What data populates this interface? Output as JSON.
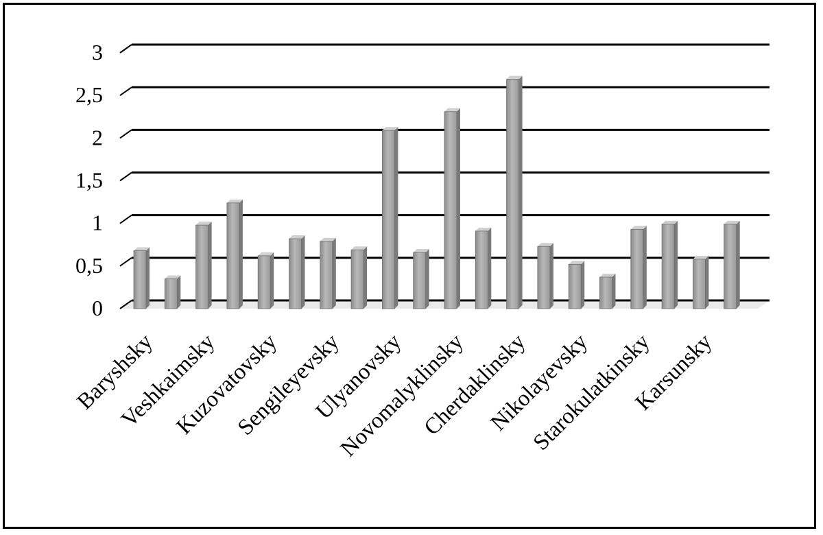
{
  "chart_data": {
    "type": "bar",
    "categories": [
      "Baryshsky",
      "",
      "Veshkaimsky",
      "",
      "Kuzovatovsky",
      "",
      "Sengileyevsky",
      "",
      "Ulyanovsky",
      "",
      "Novomalyklinsky",
      "",
      "Cherdaklinsky",
      "",
      "Nikolayevsky",
      "",
      "Starokulatkinsky",
      "",
      "Karsunsky",
      ""
    ],
    "values": [
      0.68,
      0.35,
      0.98,
      1.24,
      0.62,
      0.82,
      0.79,
      0.69,
      2.09,
      0.66,
      2.31,
      0.91,
      2.69,
      0.73,
      0.52,
      0.37,
      0.93,
      0.99,
      0.58,
      0.99
    ],
    "yticks": [
      "0",
      "0,5",
      "1",
      "1,5",
      "2",
      "2,5",
      "3"
    ],
    "ylim": [
      0,
      3
    ],
    "grid": true,
    "bar_color": "#a6a6a6",
    "title": "",
    "xlabel": "",
    "ylabel": ""
  }
}
